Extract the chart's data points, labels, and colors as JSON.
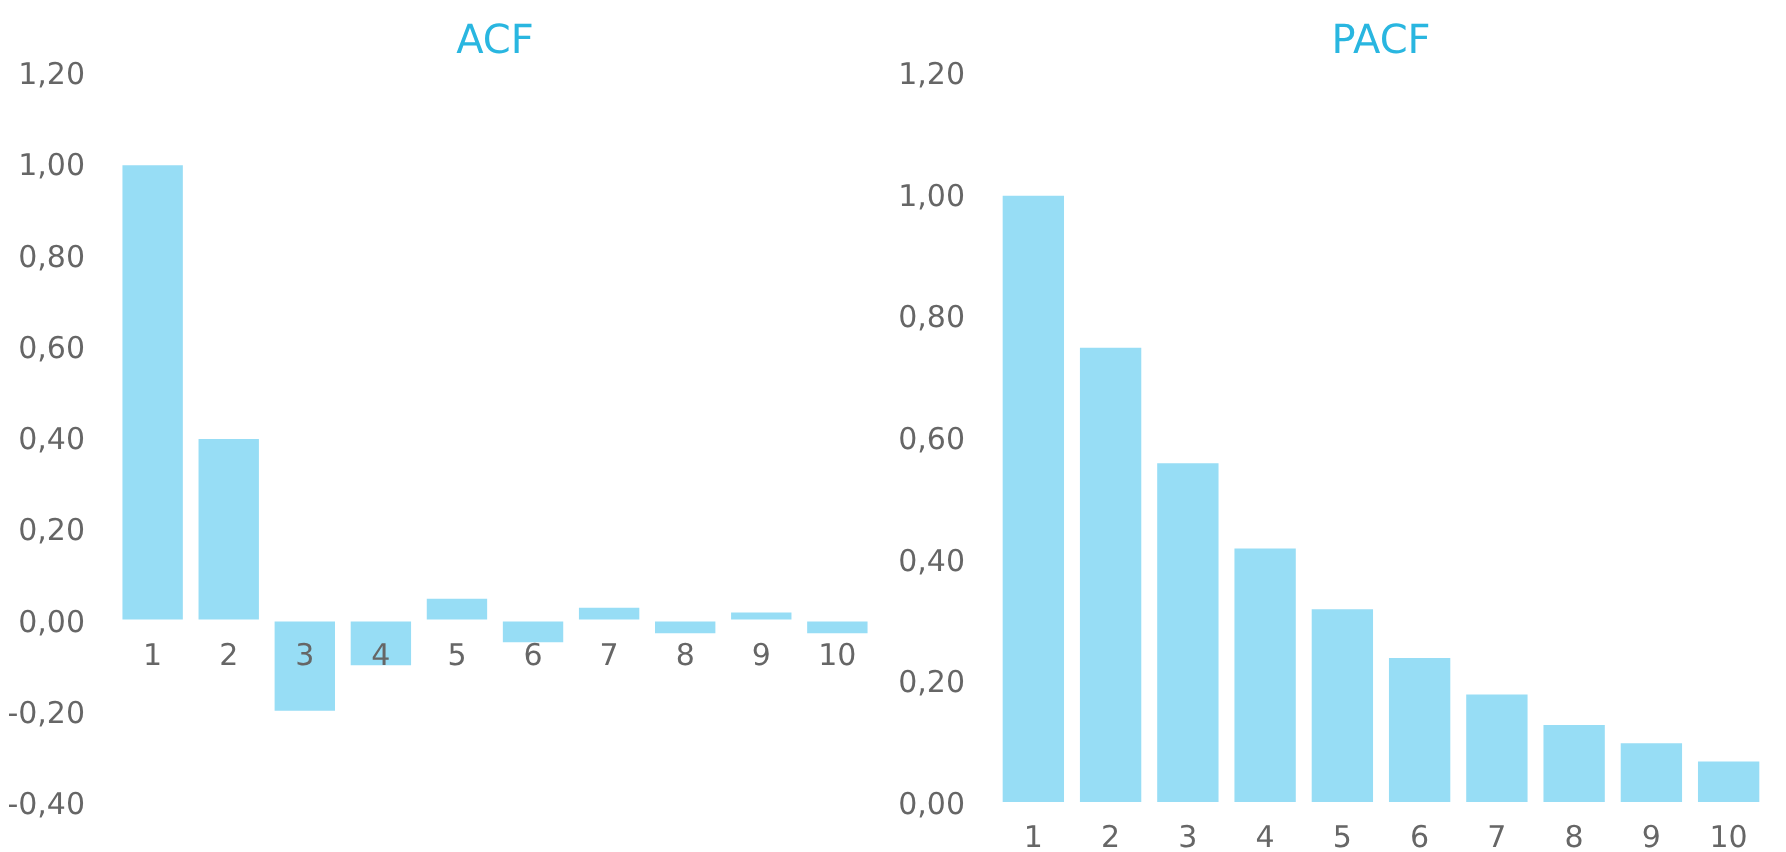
{
  "chart_data": [
    {
      "type": "bar",
      "title": "ACF",
      "categories": [
        "1",
        "2",
        "3",
        "4",
        "5",
        "6",
        "7",
        "8",
        "9",
        "10"
      ],
      "values": [
        1.0,
        0.4,
        -0.2,
        -0.1,
        0.05,
        -0.05,
        0.03,
        -0.03,
        0.02,
        -0.03
      ],
      "color": "#97ddf5",
      "ylim": [
        -0.4,
        1.2
      ],
      "yticks": [
        {
          "value": -0.4,
          "label": "-0,40"
        },
        {
          "value": -0.2,
          "label": "-0,20"
        },
        {
          "value": 0,
          "label": "0,00"
        },
        {
          "value": 0.2,
          "label": "0,20"
        },
        {
          "value": 0.4,
          "label": "0,40"
        },
        {
          "value": 0.6,
          "label": "0,60"
        },
        {
          "value": 0.8,
          "label": "0,80"
        },
        {
          "value": 1.0,
          "label": "1,00"
        },
        {
          "value": 1.2,
          "label": "1,20"
        }
      ],
      "grid": false,
      "legend": false
    },
    {
      "type": "bar",
      "title": "PACF",
      "categories": [
        "1",
        "2",
        "3",
        "4",
        "5",
        "6",
        "7",
        "8",
        "9",
        "10"
      ],
      "values": [
        1.0,
        0.75,
        0.56,
        0.42,
        0.32,
        0.24,
        0.18,
        0.13,
        0.1,
        0.07
      ],
      "color": "#97ddf5",
      "ylim": [
        0,
        1.2
      ],
      "yticks": [
        {
          "value": 0,
          "label": "0,00"
        },
        {
          "value": 0.2,
          "label": "0,20"
        },
        {
          "value": 0.4,
          "label": "0,40"
        },
        {
          "value": 0.6,
          "label": "0,60"
        },
        {
          "value": 0.8,
          "label": "0,80"
        },
        {
          "value": 1.0,
          "label": "1,00"
        },
        {
          "value": 1.2,
          "label": "1,20"
        }
      ],
      "grid": false,
      "legend": false
    }
  ]
}
